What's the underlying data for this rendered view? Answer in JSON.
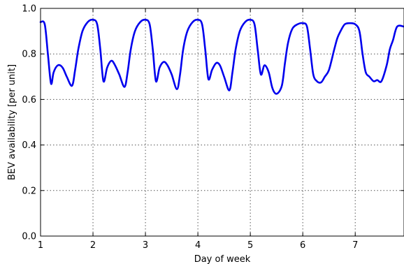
{
  "chart_data": {
    "type": "line",
    "title": "",
    "xlabel": "Day of week",
    "ylabel": "BEV availability [per unit]",
    "xlim": [
      1,
      7.93
    ],
    "ylim": [
      0,
      1
    ],
    "grid": true,
    "legend": "none",
    "x_ticks": [
      1,
      2,
      3,
      4,
      5,
      6,
      7
    ],
    "x_tick_labels": [
      "1",
      "2",
      "3",
      "4",
      "5",
      "6",
      "7"
    ],
    "y_ticks": [
      0,
      0.2,
      0.4,
      0.6,
      0.8,
      1.0
    ],
    "y_tick_labels": [
      "0.0",
      "0.2",
      "0.4",
      "0.6",
      "0.8",
      "1.0"
    ],
    "colors": {
      "line": "#0000ee",
      "grid": "#555555",
      "axes": "#000000"
    },
    "series": [
      {
        "x": [
          1.0,
          1.08,
          1.14,
          1.2,
          1.25,
          1.33,
          1.42,
          1.5,
          1.6,
          1.66,
          1.72,
          1.8,
          1.9,
          2.0,
          2.08,
          2.14,
          2.2,
          2.27,
          2.35,
          2.42,
          2.5,
          2.6,
          2.66,
          2.72,
          2.8,
          2.9,
          3.0,
          3.08,
          3.14,
          3.2,
          3.27,
          3.35,
          3.42,
          3.5,
          3.6,
          3.66,
          3.72,
          3.8,
          3.9,
          4.0,
          4.08,
          4.14,
          4.2,
          4.27,
          4.35,
          4.42,
          4.5,
          4.6,
          4.66,
          4.72,
          4.8,
          4.9,
          5.0,
          5.08,
          5.14,
          5.2,
          5.27,
          5.35,
          5.42,
          5.5,
          5.6,
          5.66,
          5.72,
          5.8,
          5.9,
          6.0,
          6.08,
          6.14,
          6.2,
          6.27,
          6.35,
          6.42,
          6.5,
          6.6,
          6.66,
          6.72,
          6.8,
          6.9,
          7.0,
          7.08,
          7.14,
          7.2,
          7.27,
          7.35,
          7.42,
          7.5,
          7.6,
          7.66,
          7.72,
          7.8,
          7.93
        ],
        "y": [
          0.94,
          0.93,
          0.8,
          0.67,
          0.72,
          0.75,
          0.74,
          0.7,
          0.66,
          0.73,
          0.82,
          0.9,
          0.94,
          0.95,
          0.93,
          0.82,
          0.68,
          0.74,
          0.77,
          0.75,
          0.71,
          0.655,
          0.72,
          0.82,
          0.9,
          0.94,
          0.95,
          0.93,
          0.82,
          0.68,
          0.74,
          0.765,
          0.75,
          0.71,
          0.645,
          0.71,
          0.82,
          0.9,
          0.94,
          0.95,
          0.93,
          0.82,
          0.69,
          0.73,
          0.76,
          0.75,
          0.7,
          0.64,
          0.72,
          0.82,
          0.9,
          0.94,
          0.95,
          0.93,
          0.82,
          0.71,
          0.75,
          0.72,
          0.65,
          0.625,
          0.66,
          0.76,
          0.85,
          0.91,
          0.93,
          0.935,
          0.92,
          0.82,
          0.71,
          0.68,
          0.675,
          0.7,
          0.73,
          0.82,
          0.87,
          0.9,
          0.93,
          0.935,
          0.93,
          0.9,
          0.8,
          0.72,
          0.7,
          0.68,
          0.685,
          0.68,
          0.75,
          0.82,
          0.86,
          0.92,
          0.92
        ]
      }
    ]
  }
}
